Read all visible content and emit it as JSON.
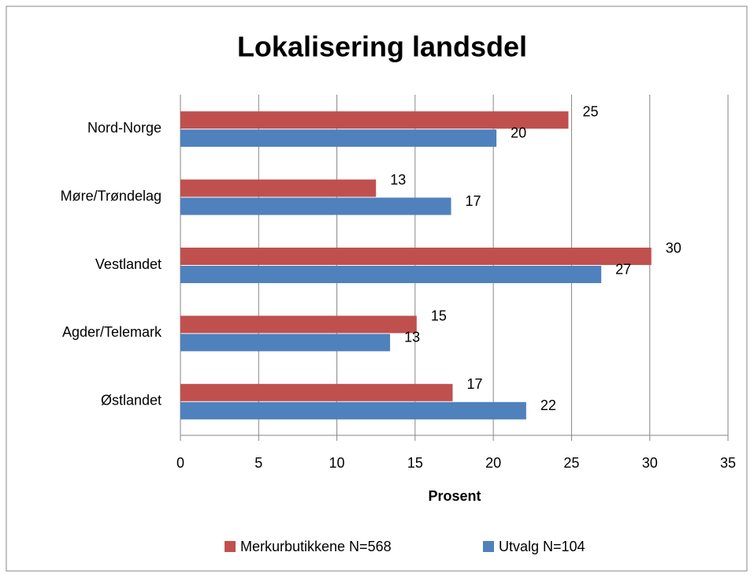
{
  "chart_data": {
    "type": "hbar",
    "title": "Lokalisering landsdel",
    "categories": [
      "Nord-Norge",
      "Møre/Trøndelag",
      "Vestlandet",
      "Agder/Telemark",
      "Østlandet"
    ],
    "series": [
      {
        "name": "Merkurbutikkene N=568",
        "color": "#c0504d",
        "values": [
          24.8,
          12.5,
          30.1,
          15.1,
          17.4
        ],
        "value_labels": [
          "25",
          "13",
          "30",
          "15",
          "17"
        ]
      },
      {
        "name": "Utvalg N=104",
        "color": "#4f81bd",
        "values": [
          20.2,
          17.3,
          26.9,
          13.4,
          22.1
        ],
        "value_labels": [
          "20",
          "17",
          "27",
          "13",
          "22"
        ]
      }
    ],
    "xlabel": "Prosent",
    "xlim": [
      0,
      35
    ],
    "xticks": [
      0,
      5,
      10,
      15,
      20,
      25,
      30,
      35
    ],
    "grid": true,
    "legend": "bottom"
  }
}
